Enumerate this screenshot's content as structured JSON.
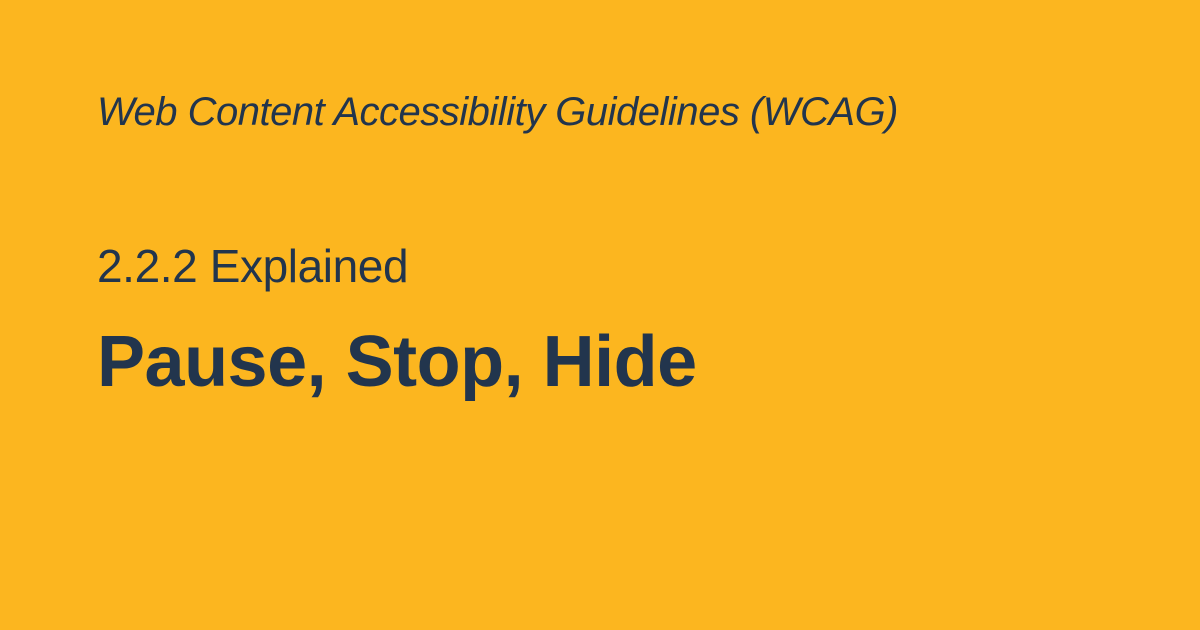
{
  "header": {
    "eyebrow": "Web Content Accessibility Guidelines (WCAG)",
    "subtitle": "2.2.2 Explained",
    "title": "Pause, Stop, Hide"
  },
  "colors": {
    "background": "#fcb61f",
    "text": "#22354d"
  }
}
